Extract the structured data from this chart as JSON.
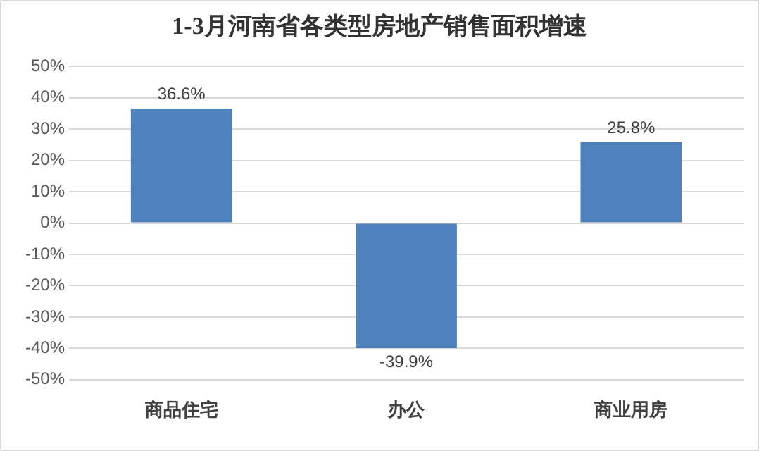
{
  "chart_data": {
    "type": "bar",
    "title": "1-3月河南省各类型房地产销售面积增速",
    "categories": [
      "商品住宅",
      "办公",
      "商业用房"
    ],
    "values": [
      36.6,
      -39.9,
      25.8
    ],
    "value_labels": [
      "36.6%",
      "-39.9%",
      "25.8%"
    ],
    "color": "#4f81bd",
    "ylim": [
      -50,
      50
    ],
    "yticks": [
      {
        "value": -50,
        "label": "-50%"
      },
      {
        "value": -40,
        "label": "-40%"
      },
      {
        "value": -30,
        "label": "-30%"
      },
      {
        "value": -20,
        "label": "-20%"
      },
      {
        "value": -10,
        "label": "-10%"
      },
      {
        "value": 0,
        "label": "0%"
      },
      {
        "value": 10,
        "label": "10%"
      },
      {
        "value": 20,
        "label": "20%"
      },
      {
        "value": 30,
        "label": "30%"
      },
      {
        "value": 40,
        "label": "40%"
      },
      {
        "value": 50,
        "label": "50%"
      }
    ],
    "grid": "y",
    "legend": false
  }
}
